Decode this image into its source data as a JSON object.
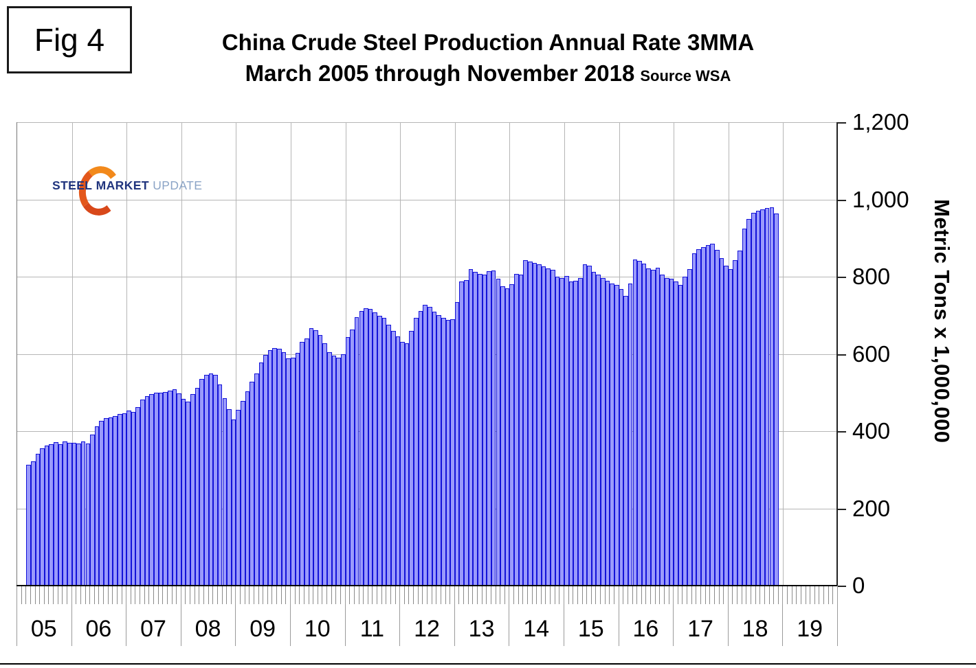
{
  "figure_label": "Fig 4",
  "header": {
    "title_line1": "China Crude Steel Production Annual Rate 3MMA",
    "title_line2": "March 2005 through November 2018",
    "source": "Source WSA"
  },
  "logo": {
    "steel": "STEEL",
    "market": "MARKET",
    "update": "UPDATE",
    "crescent_color": "#e3571b",
    "navy": "#21357e",
    "light_blue": "#8ba4c6"
  },
  "chart_data": {
    "type": "bar",
    "title": "China Crude Steel Production Annual Rate 3MMA",
    "subtitle": "March 2005 through November 2018",
    "source": "WSA",
    "ylabel": "Metric Tons x 1,000,000",
    "ylim": [
      0,
      1200
    ],
    "y_ticks": [
      "0",
      "200",
      "400",
      "600",
      "800",
      "1,000",
      "1,200"
    ],
    "x_year_labels": [
      "05",
      "06",
      "07",
      "08",
      "09",
      "10",
      "11",
      "12",
      "13",
      "14",
      "15",
      "16",
      "17",
      "18",
      "19"
    ],
    "axis_years_span": 15,
    "start": "2005-03",
    "end": "2018-11",
    "grid": true,
    "bar_fill": "#9a9afb",
    "bar_border": "#1212d8",
    "gridline_color": "#b5b5b5",
    "series_by_year": [
      {
        "year": 2005,
        "first_month": 3,
        "values": [
          313,
          322,
          341,
          355,
          362,
          367,
          371,
          366,
          374,
          370
        ]
      },
      {
        "year": 2006,
        "first_month": 1,
        "values": [
          370,
          368,
          373,
          368,
          391,
          412,
          426,
          433,
          436,
          439,
          444,
          446
        ]
      },
      {
        "year": 2007,
        "first_month": 1,
        "values": [
          453,
          449,
          463,
          482,
          490,
          496,
          499,
          500,
          502,
          505,
          508,
          497
        ]
      },
      {
        "year": 2008,
        "first_month": 1,
        "values": [
          483,
          477,
          496,
          512,
          535,
          545,
          549,
          545,
          521,
          486,
          457,
          431
        ]
      },
      {
        "year": 2009,
        "first_month": 1,
        "values": [
          455,
          478,
          503,
          528,
          550,
          577,
          598,
          610,
          616,
          614,
          605,
          588
        ]
      },
      {
        "year": 2010,
        "first_month": 1,
        "values": [
          590,
          603,
          631,
          640,
          666,
          662,
          649,
          628,
          604,
          596,
          590,
          599
        ]
      },
      {
        "year": 2011,
        "first_month": 1,
        "values": [
          643,
          664,
          695,
          712,
          718,
          716,
          708,
          698,
          694,
          676,
          660,
          645
        ]
      },
      {
        "year": 2012,
        "first_month": 1,
        "values": [
          632,
          628,
          660,
          694,
          712,
          728,
          722,
          710,
          700,
          693,
          688,
          690
        ]
      },
      {
        "year": 2013,
        "first_month": 1,
        "values": [
          735,
          788,
          792,
          820,
          812,
          808,
          806,
          814,
          816,
          795,
          775,
          770
        ]
      },
      {
        "year": 2014,
        "first_month": 1,
        "values": [
          780,
          808,
          806,
          843,
          840,
          836,
          832,
          826,
          821,
          818,
          800,
          797
        ]
      },
      {
        "year": 2015,
        "first_month": 1,
        "values": [
          802,
          788,
          790,
          797,
          832,
          829,
          812,
          806,
          796,
          790,
          782,
          778
        ]
      },
      {
        "year": 2016,
        "first_month": 1,
        "values": [
          768,
          750,
          783,
          845,
          841,
          833,
          821,
          818,
          824,
          806,
          797,
          794
        ]
      },
      {
        "year": 2017,
        "first_month": 1,
        "values": [
          788,
          778,
          800,
          820,
          860,
          872,
          876,
          882,
          886,
          870,
          848,
          828
        ]
      },
      {
        "year": 2018,
        "first_month": 1,
        "values": [
          820,
          842,
          868,
          925,
          950,
          966,
          971,
          974,
          977,
          979,
          963
        ]
      }
    ]
  }
}
